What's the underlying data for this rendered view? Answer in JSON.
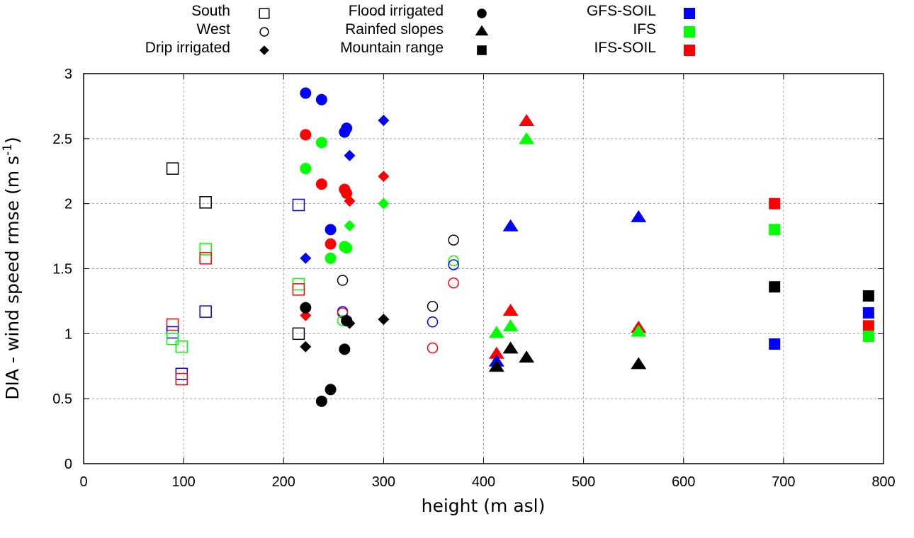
{
  "chart_data": {
    "type": "scatter",
    "title": "",
    "xlabel": "height (m asl)",
    "ylabel_main": "DIA - wind speed rmse (m s",
    "ylabel_sup": "-1",
    "ylabel_end": ")",
    "xlim": [
      0,
      800
    ],
    "ylim": [
      0,
      3
    ],
    "xticks": [
      "0",
      "100",
      "200",
      "300",
      "400",
      "500",
      "600",
      "700",
      "800"
    ],
    "yticks": [
      "0",
      "0.5",
      "1",
      "1.5",
      "2",
      "2.5",
      "3"
    ],
    "grid": true,
    "legend_placement": "top",
    "legend": {
      "shapes": [
        {
          "label": "South",
          "marker": "open-square"
        },
        {
          "label": "West",
          "marker": "open-circle"
        },
        {
          "label": "Drip irrigated",
          "marker": "diamond"
        },
        {
          "label": "Flood irrigated",
          "marker": "circle"
        },
        {
          "label": "Rainfed slopes",
          "marker": "triangle"
        },
        {
          "label": "Mountain range",
          "marker": "square"
        }
      ],
      "colors": [
        {
          "label": "GFS-SOIL",
          "color": "#0000ff"
        },
        {
          "label": "IFS",
          "color": "#00ff00"
        },
        {
          "label": "IFS-SOIL",
          "color": "#ff0000"
        }
      ]
    },
    "colors": {
      "black": "#000000",
      "GFS-SOIL": "#0000ff",
      "IFS": "#00ff00",
      "IFS-SOIL": "#ff0000"
    },
    "series": [
      {
        "name": "South",
        "marker": "open-square",
        "points": [
          {
            "x": 89,
            "y": 2.27,
            "c": "black"
          },
          {
            "x": 89,
            "y": 1.07,
            "c": "IFS-SOIL"
          },
          {
            "x": 89,
            "y": 1.01,
            "c": "GFS-SOIL"
          },
          {
            "x": 89,
            "y": 0.96,
            "c": "IFS"
          },
          {
            "x": 98,
            "y": 0.9,
            "c": "IFS"
          },
          {
            "x": 98,
            "y": 0.69,
            "c": "GFS-SOIL"
          },
          {
            "x": 98,
            "y": 0.65,
            "c": "IFS-SOIL"
          },
          {
            "x": 122,
            "y": 2.01,
            "c": "black"
          },
          {
            "x": 122,
            "y": 1.65,
            "c": "IFS"
          },
          {
            "x": 122,
            "y": 1.58,
            "c": "IFS-SOIL"
          },
          {
            "x": 122,
            "y": 1.17,
            "c": "GFS-SOIL"
          },
          {
            "x": 215,
            "y": 1.99,
            "c": "GFS-SOIL"
          },
          {
            "x": 215,
            "y": 1.38,
            "c": "IFS"
          },
          {
            "x": 215,
            "y": 1.34,
            "c": "IFS-SOIL"
          },
          {
            "x": 215,
            "y": 1.0,
            "c": "black"
          }
        ]
      },
      {
        "name": "West",
        "marker": "open-circle",
        "points": [
          {
            "x": 259,
            "y": 1.41,
            "c": "black"
          },
          {
            "x": 259,
            "y": 1.17,
            "c": "GFS-SOIL"
          },
          {
            "x": 259,
            "y": 1.16,
            "c": "IFS-SOIL"
          },
          {
            "x": 259,
            "y": 1.1,
            "c": "IFS"
          },
          {
            "x": 349,
            "y": 1.21,
            "c": "black"
          },
          {
            "x": 349,
            "y": 1.09,
            "c": "GFS-SOIL"
          },
          {
            "x": 349,
            "y": 0.89,
            "c": "IFS-SOIL"
          },
          {
            "x": 370,
            "y": 1.72,
            "c": "black"
          },
          {
            "x": 370,
            "y": 1.56,
            "c": "IFS"
          },
          {
            "x": 370,
            "y": 1.53,
            "c": "GFS-SOIL"
          },
          {
            "x": 370,
            "y": 1.39,
            "c": "IFS-SOIL"
          }
        ]
      },
      {
        "name": "Drip irrigated",
        "marker": "diamond",
        "points": [
          {
            "x": 222,
            "y": 1.58,
            "c": "GFS-SOIL"
          },
          {
            "x": 222,
            "y": 1.14,
            "c": "IFS-SOIL"
          },
          {
            "x": 222,
            "y": 0.9,
            "c": "black"
          },
          {
            "x": 266,
            "y": 2.37,
            "c": "GFS-SOIL"
          },
          {
            "x": 266,
            "y": 2.02,
            "c": "IFS-SOIL"
          },
          {
            "x": 266,
            "y": 1.83,
            "c": "IFS"
          },
          {
            "x": 266,
            "y": 1.08,
            "c": "black"
          },
          {
            "x": 300,
            "y": 2.64,
            "c": "GFS-SOIL"
          },
          {
            "x": 300,
            "y": 2.21,
            "c": "IFS-SOIL"
          },
          {
            "x": 300,
            "y": 2.0,
            "c": "IFS"
          },
          {
            "x": 300,
            "y": 1.11,
            "c": "black"
          }
        ]
      },
      {
        "name": "Flood irrigated",
        "marker": "circle",
        "points": [
          {
            "x": 222,
            "y": 2.85,
            "c": "GFS-SOIL"
          },
          {
            "x": 222,
            "y": 2.53,
            "c": "IFS-SOIL"
          },
          {
            "x": 222,
            "y": 2.27,
            "c": "IFS"
          },
          {
            "x": 222,
            "y": 1.2,
            "c": "black"
          },
          {
            "x": 238,
            "y": 2.8,
            "c": "GFS-SOIL"
          },
          {
            "x": 238,
            "y": 2.47,
            "c": "IFS"
          },
          {
            "x": 238,
            "y": 2.15,
            "c": "IFS-SOIL"
          },
          {
            "x": 238,
            "y": 0.48,
            "c": "black"
          },
          {
            "x": 247,
            "y": 1.8,
            "c": "GFS-SOIL"
          },
          {
            "x": 247,
            "y": 1.69,
            "c": "IFS-SOIL"
          },
          {
            "x": 247,
            "y": 1.58,
            "c": "IFS"
          },
          {
            "x": 247,
            "y": 0.57,
            "c": "black"
          },
          {
            "x": 261,
            "y": 2.55,
            "c": "GFS-SOIL"
          },
          {
            "x": 261,
            "y": 2.11,
            "c": "IFS-SOIL"
          },
          {
            "x": 261,
            "y": 1.67,
            "c": "IFS"
          },
          {
            "x": 261,
            "y": 0.88,
            "c": "black"
          },
          {
            "x": 263,
            "y": 2.58,
            "c": "GFS-SOIL"
          },
          {
            "x": 263,
            "y": 2.08,
            "c": "IFS-SOIL"
          },
          {
            "x": 263,
            "y": 1.66,
            "c": "IFS"
          },
          {
            "x": 263,
            "y": 1.1,
            "c": "black"
          }
        ]
      },
      {
        "name": "Rainfed slopes",
        "marker": "triangle",
        "points": [
          {
            "x": 413,
            "y": 1.0,
            "c": "IFS"
          },
          {
            "x": 413,
            "y": 0.84,
            "c": "IFS-SOIL"
          },
          {
            "x": 413,
            "y": 0.78,
            "c": "GFS-SOIL"
          },
          {
            "x": 413,
            "y": 0.74,
            "c": "black"
          },
          {
            "x": 427,
            "y": 1.82,
            "c": "GFS-SOIL"
          },
          {
            "x": 427,
            "y": 1.17,
            "c": "IFS-SOIL"
          },
          {
            "x": 427,
            "y": 1.05,
            "c": "IFS"
          },
          {
            "x": 427,
            "y": 0.88,
            "c": "black"
          },
          {
            "x": 443,
            "y": 2.63,
            "c": "IFS-SOIL"
          },
          {
            "x": 443,
            "y": 2.49,
            "c": "IFS"
          },
          {
            "x": 443,
            "y": 0.81,
            "c": "black"
          },
          {
            "x": 555,
            "y": 1.89,
            "c": "GFS-SOIL"
          },
          {
            "x": 555,
            "y": 1.04,
            "c": "IFS-SOIL"
          },
          {
            "x": 555,
            "y": 1.01,
            "c": "IFS"
          },
          {
            "x": 555,
            "y": 0.76,
            "c": "black"
          }
        ]
      },
      {
        "name": "Mountain range",
        "marker": "square",
        "points": [
          {
            "x": 691,
            "y": 2.0,
            "c": "IFS-SOIL"
          },
          {
            "x": 691,
            "y": 1.8,
            "c": "IFS"
          },
          {
            "x": 691,
            "y": 1.36,
            "c": "black"
          },
          {
            "x": 691,
            "y": 0.92,
            "c": "GFS-SOIL"
          },
          {
            "x": 785,
            "y": 1.29,
            "c": "black"
          },
          {
            "x": 785,
            "y": 1.16,
            "c": "GFS-SOIL"
          },
          {
            "x": 785,
            "y": 1.06,
            "c": "IFS-SOIL"
          },
          {
            "x": 785,
            "y": 0.98,
            "c": "IFS"
          }
        ]
      }
    ]
  }
}
